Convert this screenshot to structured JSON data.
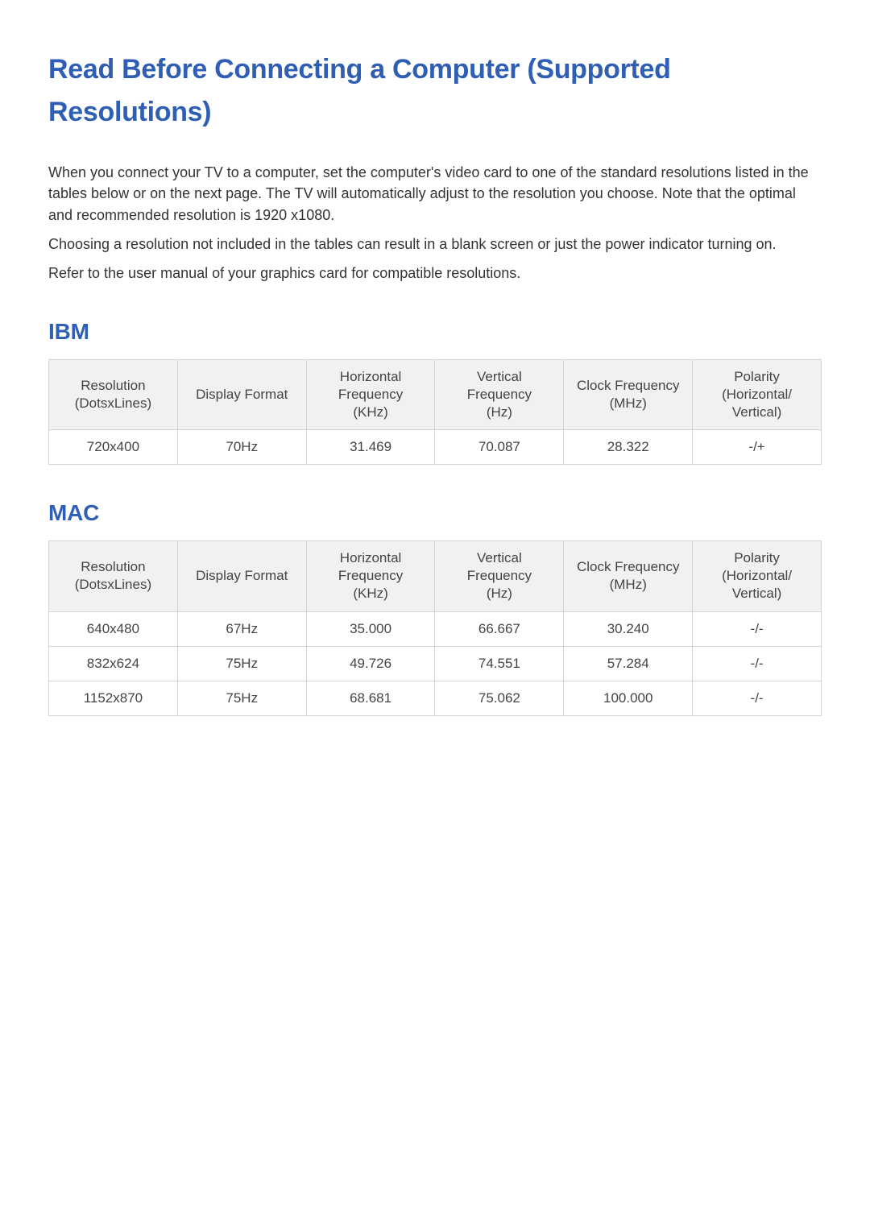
{
  "title": "Read Before Connecting a Computer (Supported Resolutions)",
  "intro": {
    "p1": "When you connect your TV to a computer, set the computer's video card to one of the standard resolutions listed in the tables below or on the next page. The TV will automatically adjust to the resolution you choose. Note that the optimal and recommended resolution is 1920 x1080.",
    "p2": "Choosing a resolution not included in the tables can result in a blank screen or just the power indicator turning on.",
    "p3": "Refer to the user manual of your graphics card for compatible resolutions."
  },
  "columns": {
    "col1a": "Resolution",
    "col1b": "(DotsxLines)",
    "col2": "Display Format",
    "col3a": "Horizontal",
    "col3b": "Frequency",
    "col3c": "(KHz)",
    "col4a": "Vertical",
    "col4b": "Frequency",
    "col4c": "(Hz)",
    "col5a": "Clock Frequency",
    "col5b": "(MHz)",
    "col6a": "Polarity",
    "col6b": "(Horizontal/",
    "col6c": "Vertical)"
  },
  "ibm": {
    "heading": "IBM",
    "rows": [
      {
        "res": "720x400",
        "fmt": "70Hz",
        "hfreq": "31.469",
        "vfreq": "70.087",
        "clk": "28.322",
        "pol": "-/+"
      }
    ]
  },
  "mac": {
    "heading": "MAC",
    "rows": [
      {
        "res": "640x480",
        "fmt": "67Hz",
        "hfreq": "35.000",
        "vfreq": "66.667",
        "clk": "30.240",
        "pol": "-/-"
      },
      {
        "res": "832x624",
        "fmt": "75Hz",
        "hfreq": "49.726",
        "vfreq": "74.551",
        "clk": "57.284",
        "pol": "-/-"
      },
      {
        "res": "1152x870",
        "fmt": "75Hz",
        "hfreq": "68.681",
        "vfreq": "75.062",
        "clk": "100.000",
        "pol": "-/-"
      }
    ]
  },
  "style": {
    "title_color": "#2f5fb5",
    "text_color": "#333333",
    "header_bg": "#f1f1f1",
    "border_color": "#d4d4d4",
    "title_fontsize": 34,
    "section_fontsize": 28,
    "body_fontsize": 18,
    "table_fontsize": 17
  }
}
